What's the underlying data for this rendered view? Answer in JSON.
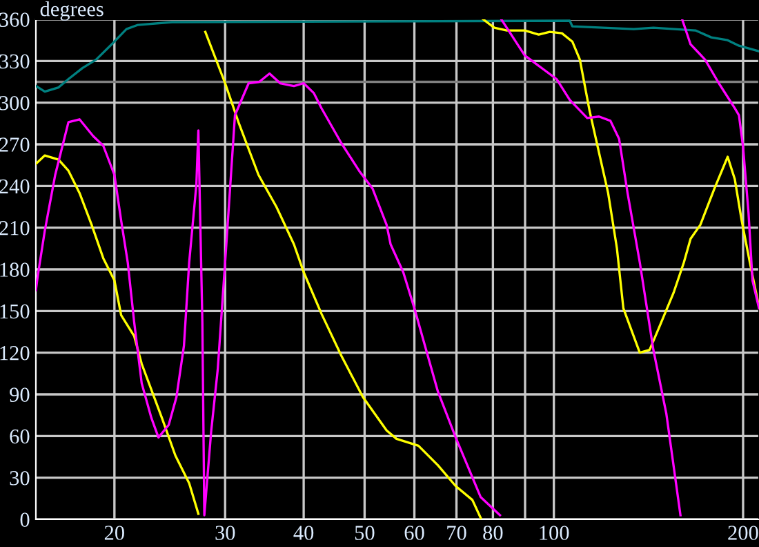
{
  "chart_data": {
    "type": "line",
    "ylabel": "degrees",
    "log": "x",
    "grid": true,
    "marker": "none",
    "line_style": "solid",
    "xlim": [
      15,
      212
    ],
    "ylim": [
      0,
      360
    ],
    "xticks": [
      20,
      30,
      40,
      50,
      60,
      70,
      80,
      {
        "value": 90,
        "label": null
      },
      100,
      200
    ],
    "yticks": [
      0,
      30,
      60,
      90,
      120,
      150,
      180,
      210,
      240,
      270,
      300,
      330,
      360
    ],
    "ref_lines": [
      {
        "axis": "y",
        "value": 315,
        "label": null,
        "color": "#808080"
      }
    ],
    "series": [
      {
        "color": "#008080",
        "x": [
          15.0,
          15.5,
          16.3,
          16.9,
          17.8,
          18.7,
          19.9,
          20.9,
          21.8,
          24.7,
          106,
          107,
          134,
          144,
          168,
          178,
          189,
          197,
          212
        ],
        "values": [
          312,
          308,
          311,
          317,
          325,
          331,
          343,
          353,
          356,
          358,
          359,
          355,
          353,
          354,
          352,
          347,
          345,
          341,
          337
        ]
      },
      {
        "color": "#ffff00",
        "x": [
          15.0,
          15.5,
          16.3,
          16.9,
          17.6,
          18.4,
          19.2,
          20.0,
          20.5,
          21.5,
          22.1,
          23.8,
          25.0,
          26.3,
          27.2,
          27.5,
          27.9,
          30.0,
          31.5,
          33.9,
          36.2,
          38.6,
          40.0,
          42.7,
          45.9,
          49.7,
          54.2,
          56.2,
          60.9,
          65.4,
          69.8,
          74.2,
          76.5,
          77,
          77.2,
          80.4,
          84.2,
          89.9,
          94.6,
          98.5,
          103,
          107,
          110,
          114,
          118,
          122,
          126,
          129,
          137,
          142,
          147,
          155,
          161,
          165,
          171,
          180,
          189,
          194,
          199,
          205,
          212
        ],
        "values": [
          256,
          262,
          259,
          251,
          235,
          212,
          188,
          172,
          147,
          132,
          112,
          73,
          46,
          26,
          4,
          null,
          351,
          314,
          286,
          248,
          225,
          198,
          178,
          148,
          118,
          88,
          64,
          58,
          53,
          39,
          24,
          14,
          1,
          null,
          360,
          354,
          352,
          352,
          349,
          351,
          350,
          344,
          331,
          294,
          264,
          235,
          195,
          152,
          120,
          122,
          138,
          163,
          185,
          202,
          212,
          238,
          261,
          245,
          215,
          185,
          153
        ]
      },
      {
        "color": "#ff00ff",
        "x": [
          15.0,
          15.1,
          15.5,
          16.1,
          16.9,
          17.6,
          18.5,
          19.2,
          20.0,
          20.5,
          21.0,
          21.5,
          22.1,
          22.9,
          23.5,
          24.4,
          25.1,
          25.8,
          26.3,
          27.0,
          27.2,
          27.6,
          27.8,
          28.1,
          28.5,
          29.2,
          30.0,
          31.1,
          32.7,
          34.0,
          35.3,
          36.7,
          38.6,
          40.0,
          41.5,
          42.7,
          45.9,
          49.0,
          51.5,
          54.2,
          55.0,
          57.6,
          60.0,
          65.4,
          69.8,
          76.5,
          82.1,
          82.3,
          82.5,
          89.9,
          101,
          106,
          113,
          118,
          123,
          127,
          131,
          137,
          144,
          151,
          159,
          159.5,
          160,
          165,
          174,
          183,
          194,
          197,
          200,
          204,
          207,
          212
        ],
        "values": [
          165,
          175,
          208,
          248,
          286,
          288,
          276,
          269,
          248,
          215,
          185,
          142,
          98,
          73,
          59,
          68,
          88,
          125,
          185,
          241,
          280,
          142,
          3,
          29,
          63,
          108,
          185,
          291,
          314,
          315,
          321,
          314,
          312,
          314,
          307,
          296,
          271,
          251,
          238,
          212,
          198,
          178,
          152,
          92,
          59,
          16,
          3,
          null,
          360,
          334,
          317,
          302,
          289,
          290,
          287,
          274,
          235,
          185,
          122,
          76,
          3,
          null,
          360,
          342,
          331,
          314,
          296,
          291,
          268,
          221,
          172,
          152
        ]
      }
    ]
  }
}
